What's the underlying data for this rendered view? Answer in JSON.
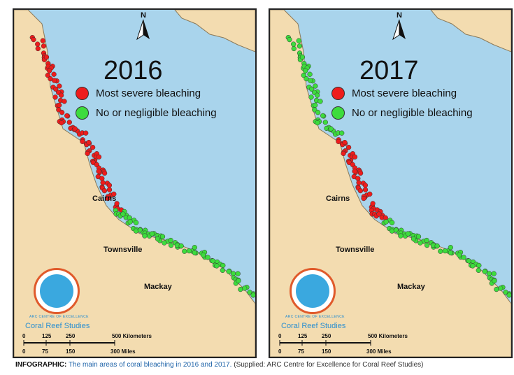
{
  "panels": [
    {
      "year": "2016",
      "legend": [
        {
          "label": "Most severe bleaching",
          "color": "#ee1c1c"
        },
        {
          "label": "No or negligible bleaching",
          "color": "#3ddc3d"
        }
      ],
      "cities": [
        "Cairns",
        "Townsville",
        "Mackay"
      ],
      "north_label": "N",
      "logo": {
        "line1": "ARC CENTRE OF EXCELLENCE",
        "line2": "Coral Reef Studies"
      },
      "scale": {
        "km_ticks": [
          "0",
          "125",
          "250",
          "500 Kilometers"
        ],
        "mi_ticks": [
          "0",
          "75",
          "150",
          "300 Miles"
        ]
      }
    },
    {
      "year": "2017",
      "legend": [
        {
          "label": "Most severe bleaching",
          "color": "#ee1c1c"
        },
        {
          "label": "No or negligible bleaching",
          "color": "#3ddc3d"
        }
      ],
      "cities": [
        "Cairns",
        "Townsville",
        "Mackay"
      ],
      "north_label": "N",
      "logo": {
        "line1": "ARC CENTRE OF EXCELLENCE",
        "line2": "Coral Reef Studies"
      },
      "scale": {
        "km_ticks": [
          "0",
          "125",
          "250",
          "500 Kilometers"
        ],
        "mi_ticks": [
          "0",
          "75",
          "150",
          "300 Miles"
        ]
      }
    }
  ],
  "caption": {
    "label": "INFOGRAPHIC:",
    "text": "The main areas of coral bleaching in 2016 and 2017.",
    "source": "(Supplied: ARC Centre for Excellence for Coral Reef Studies)"
  },
  "colors": {
    "sea": "#a9d4ec",
    "land": "#f3dcb0",
    "severe": "#ee1c1c",
    "none": "#3ddc3d",
    "reef": "#111111"
  }
}
